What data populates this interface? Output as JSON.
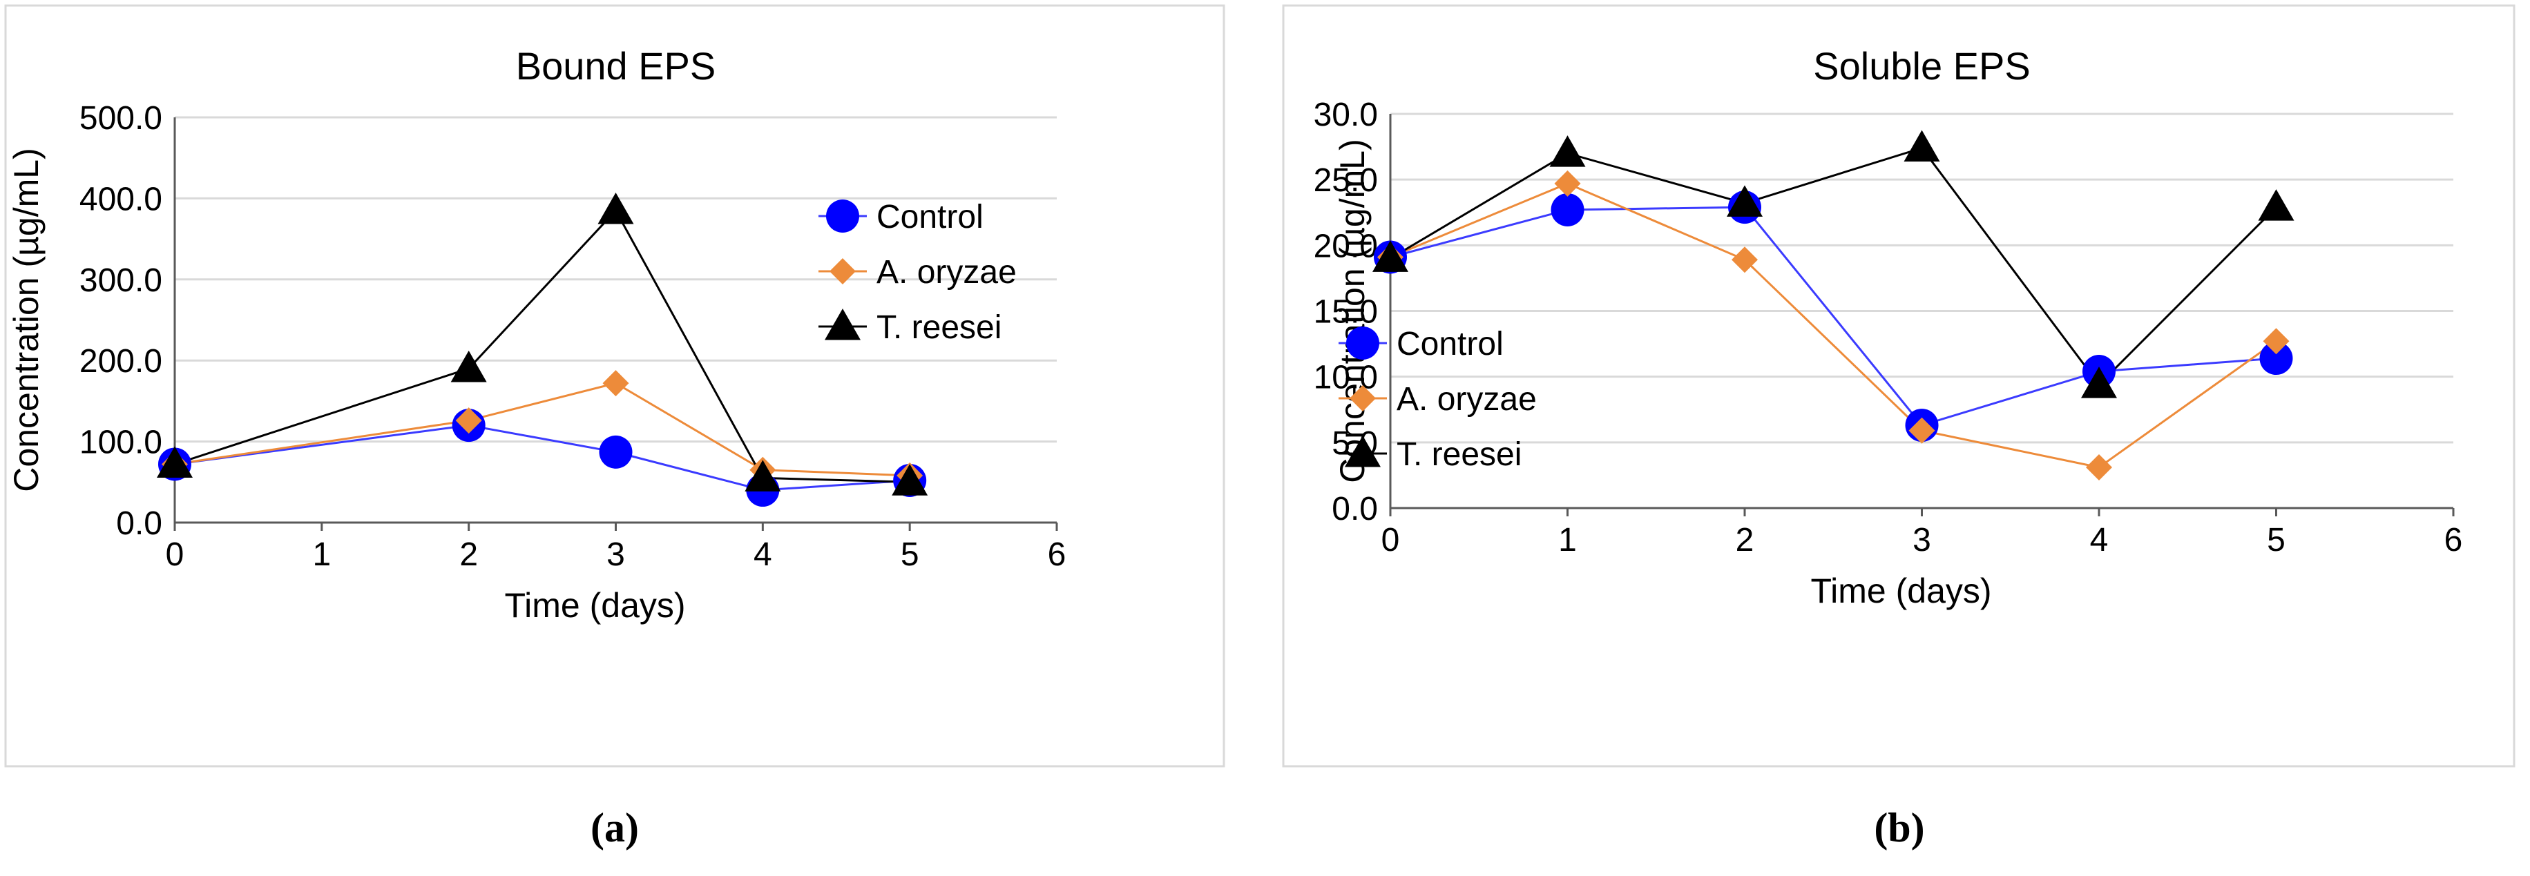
{
  "chart_data": [
    {
      "type": "line",
      "panel_label": "(a)",
      "title": "Bound EPS",
      "xlabel": "Time  (days)",
      "ylabel": "Concentration (µg/mL)",
      "xlim": [
        0,
        6
      ],
      "xticks": [
        0,
        1,
        2,
        3,
        4,
        5,
        6
      ],
      "ylim": [
        0,
        500
      ],
      "yticks": [
        0,
        100,
        200,
        300,
        400,
        500
      ],
      "ytick_labels": [
        "0.0",
        "100.0",
        "200.0",
        "300.0",
        "400.0",
        "500.0"
      ],
      "grid": true,
      "legend_position": "right",
      "series": [
        {
          "name": "Control",
          "color": "#0000ff",
          "line_color": "#3b3bff",
          "marker": "circle",
          "x": [
            0,
            2,
            3,
            4,
            5
          ],
          "y": [
            72,
            120,
            87,
            40,
            52
          ]
        },
        {
          "name": "A. oryzae",
          "color": "#ed8b3a",
          "line_color": "#ed8b3a",
          "marker": "diamond",
          "x": [
            0,
            2,
            3,
            4,
            5
          ],
          "y": [
            72,
            126,
            172,
            65,
            58
          ]
        },
        {
          "name": "T. reesei",
          "color": "#000000",
          "line_color": "#000000",
          "marker": "triangle",
          "x": [
            0,
            2,
            3,
            4,
            5
          ],
          "y": [
            72,
            190,
            385,
            55,
            50
          ]
        }
      ]
    },
    {
      "type": "line",
      "panel_label": "(b)",
      "title": "Soluble EPS",
      "xlabel": "Time (days)",
      "ylabel": "Concentration (µg/mL)",
      "xlim": [
        0,
        6
      ],
      "xticks": [
        0,
        1,
        2,
        3,
        4,
        5,
        6
      ],
      "ylim": [
        0,
        30
      ],
      "yticks": [
        0,
        5,
        10,
        15,
        20,
        25,
        30
      ],
      "ytick_labels": [
        "0.0",
        "5.0",
        "10.0",
        "15.0",
        "20.0",
        "25.0",
        "30.0"
      ],
      "grid": true,
      "legend_position": "left-center",
      "series": [
        {
          "name": "Control",
          "color": "#0000ff",
          "line_color": "#3b3bff",
          "marker": "circle",
          "x": [
            0,
            1,
            2,
            3,
            4,
            5
          ],
          "y": [
            19.1,
            22.7,
            22.9,
            6.3,
            10.4,
            11.4
          ]
        },
        {
          "name": "A. oryzae",
          "color": "#ed8b3a",
          "line_color": "#ed8b3a",
          "marker": "diamond",
          "x": [
            0,
            1,
            2,
            3,
            4,
            5
          ],
          "y": [
            19.1,
            24.7,
            18.9,
            5.9,
            3.1,
            12.7
          ]
        },
        {
          "name": "T. reesei",
          "color": "#000000",
          "line_color": "#000000",
          "marker": "triangle",
          "x": [
            0,
            1,
            2,
            3,
            4,
            5
          ],
          "y": [
            19.0,
            27.0,
            23.2,
            27.4,
            9.4,
            22.9
          ]
        }
      ]
    }
  ]
}
